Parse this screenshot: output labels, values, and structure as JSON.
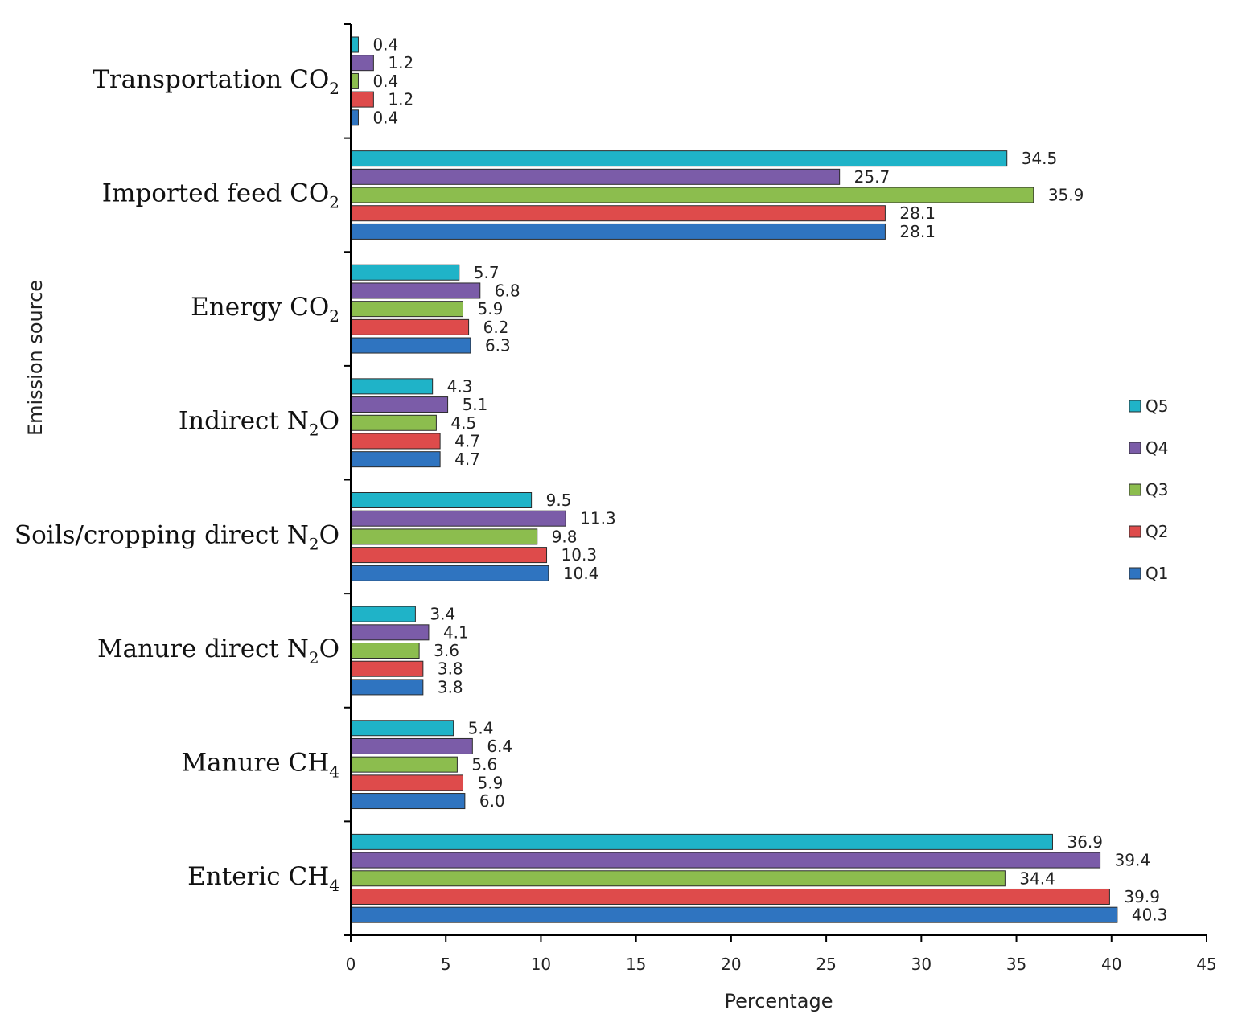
{
  "chart_data": {
    "type": "bar",
    "orientation": "horizontal",
    "xlabel": "Percentage",
    "ylabel": "Emission source",
    "xlim": [
      0,
      45
    ],
    "xticks": [
      0,
      5,
      10,
      15,
      20,
      25,
      30,
      35,
      40,
      45
    ],
    "grid": false,
    "legend_position": "right",
    "categories": [
      {
        "main": "Transportation CO",
        "sub": "2",
        "tail": ""
      },
      {
        "main": "Imported feed CO",
        "sub": "2",
        "tail": ""
      },
      {
        "main": "Energy CO",
        "sub": "2",
        "tail": ""
      },
      {
        "main": "Indirect N",
        "sub": "2",
        "tail": "O"
      },
      {
        "main": "Soils/cropping direct N",
        "sub": "2",
        "tail": "O"
      },
      {
        "main": "Manure direct N",
        "sub": "2",
        "tail": "O"
      },
      {
        "main": "Manure CH",
        "sub": "4",
        "tail": ""
      },
      {
        "main": "Enteric CH",
        "sub": "4",
        "tail": ""
      }
    ],
    "series": [
      {
        "name": "Q5",
        "color": "#1fb3c8",
        "values": [
          0.4,
          34.5,
          5.7,
          4.3,
          9.5,
          3.4,
          5.4,
          36.9
        ],
        "labels": [
          "0.4",
          "34.5",
          "5.7",
          "4.3",
          "9.5",
          "3.4",
          "5.4",
          "36.9"
        ]
      },
      {
        "name": "Q4",
        "color": "#7b5ca8",
        "values": [
          1.2,
          25.7,
          6.8,
          5.1,
          11.3,
          4.1,
          6.4,
          39.4
        ],
        "labels": [
          "1.2",
          "25.7",
          "6.8",
          "5.1",
          "11.3",
          "4.1",
          "6.4",
          "39.4"
        ]
      },
      {
        "name": "Q3",
        "color": "#8cbd4e",
        "values": [
          0.4,
          35.9,
          5.9,
          4.5,
          9.8,
          3.6,
          5.6,
          34.4
        ],
        "labels": [
          "0.4",
          "35.9",
          "5.9",
          "4.5",
          "9.8",
          "3.6",
          "5.6",
          "34.4"
        ]
      },
      {
        "name": "Q2",
        "color": "#de4b4b",
        "values": [
          1.2,
          28.1,
          6.2,
          4.7,
          10.3,
          3.8,
          5.9,
          39.9
        ],
        "labels": [
          "1.2",
          "28.1",
          "6.2",
          "4.7",
          "10.3",
          "3.8",
          "5.9",
          "39.9"
        ]
      },
      {
        "name": "Q1",
        "color": "#2f74c0",
        "values": [
          0.4,
          28.1,
          6.3,
          4.7,
          10.4,
          3.8,
          6.0,
          40.3
        ],
        "labels": [
          "0.4",
          "28.1",
          "6.3",
          "4.7",
          "10.4",
          "3.8",
          "6.0",
          "40.3"
        ]
      }
    ]
  }
}
